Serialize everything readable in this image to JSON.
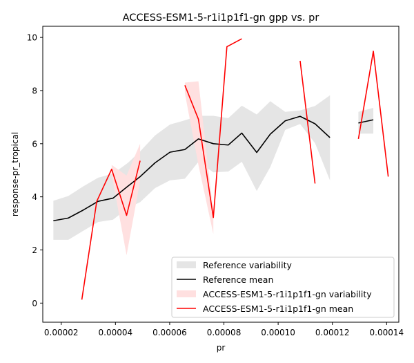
{
  "chart_data": {
    "type": "line",
    "title": "ACCESS-ESM1-5-r1i1p1f1-gn gpp vs. pr",
    "xlabel": "pr",
    "ylabel": "response-pr_tropical",
    "xlim": [
      1.32e-05,
      0.0001445
    ],
    "ylim": [
      -0.72,
      10.42
    ],
    "xticks": [
      2e-05,
      4e-05,
      6e-05,
      8e-05,
      0.0001,
      0.00012,
      0.00014
    ],
    "xtick_labels": [
      "0.00002",
      "0.00004",
      "0.00006",
      "0.00008",
      "0.00010",
      "0.00012",
      "0.00014"
    ],
    "yticks": [
      0,
      2,
      4,
      6,
      8,
      10
    ],
    "ytick_labels": [
      "0",
      "2",
      "4",
      "6",
      "8",
      "10"
    ],
    "legend_position": "lower-right",
    "series": [
      {
        "name": "Reference variability",
        "kind": "band",
        "color": "#e5e5e5",
        "segments": [
          {
            "x": [
              1.71e-05,
              2.26e-05,
              2.81e-05,
              3.36e-05,
              3.91e-05,
              4.46e-05,
              4.91e-05,
              5.46e-05,
              6.01e-05,
              6.56e-05,
              7.06e-05,
              7.61e-05,
              8.16e-05,
              8.66e-05,
              9.21e-05,
              9.71e-05,
              0.0001026,
              0.0001081,
              0.0001136,
              0.0001191
            ],
            "lower": [
              2.38,
              2.38,
              2.72,
              3.05,
              3.14,
              3.58,
              3.8,
              4.33,
              4.62,
              4.68,
              5.32,
              4.92,
              4.95,
              5.32,
              4.22,
              5.12,
              6.52,
              6.74,
              6.02,
              4.62
            ],
            "upper": [
              3.85,
              4.03,
              4.39,
              4.72,
              4.87,
              5.28,
              5.71,
              6.31,
              6.72,
              6.88,
              7.05,
              7.05,
              6.96,
              7.43,
              7.1,
              7.6,
              7.2,
              7.25,
              7.42,
              7.82
            ]
          },
          {
            "x": [
              0.0001296,
              0.0001351
            ],
            "lower": [
              6.38,
              6.38
            ],
            "upper": [
              7.2,
              7.35
            ]
          }
        ]
      },
      {
        "name": "Reference mean",
        "kind": "line",
        "color": "#000000",
        "segments": [
          {
            "x": [
              1.71e-05,
              2.26e-05,
              2.81e-05,
              3.36e-05,
              3.91e-05,
              4.46e-05,
              4.91e-05,
              5.46e-05,
              6.01e-05,
              6.56e-05,
              7.06e-05,
              7.61e-05,
              8.16e-05,
              8.66e-05,
              9.21e-05,
              9.71e-05,
              0.0001026,
              0.0001081,
              0.0001136,
              0.0001191
            ],
            "y": [
              3.1,
              3.2,
              3.5,
              3.83,
              3.95,
              4.4,
              4.76,
              5.28,
              5.68,
              5.78,
              6.18,
              6.0,
              5.95,
              6.4,
              5.67,
              6.36,
              6.86,
              7.03,
              6.75,
              6.23
            ]
          },
          {
            "x": [
              0.0001296,
              0.0001351
            ],
            "y": [
              6.78,
              6.9
            ]
          }
        ]
      },
      {
        "name": "ACCESS-ESM1-5-r1i1p1f1-gn variability",
        "kind": "band",
        "color": "#ffe0e0",
        "segments": [
          {
            "x": [
              3.86e-05,
              4.41e-05,
              4.91e-05
            ],
            "lower": [
              4.85,
              1.8,
              4.6
            ],
            "upper": [
              5.2,
              4.8,
              6.0
            ]
          },
          {
            "x": [
              6.56e-05,
              7.06e-05,
              7.61e-05
            ],
            "lower": [
              7.9,
              5.2,
              2.6
            ],
            "upper": [
              8.3,
              8.35,
              3.4
            ]
          }
        ]
      },
      {
        "name": "ACCESS-ESM1-5-r1i1p1f1-gn mean",
        "kind": "line",
        "color": "#ff0000",
        "segments": [
          {
            "x": [
              2.76e-05,
              3.31e-05,
              3.86e-05,
              4.41e-05,
              4.91e-05
            ],
            "y": [
              0.13,
              3.83,
              5.04,
              3.3,
              5.36
            ]
          },
          {
            "x": [
              6.56e-05,
              7.06e-05,
              7.61e-05,
              8.11e-05,
              8.66e-05
            ],
            "y": [
              8.2,
              6.92,
              3.22,
              9.65,
              9.95
            ]
          },
          {
            "x": [
              0.0001081,
              0.0001136
            ],
            "y": [
              9.12,
              4.5
            ]
          },
          {
            "x": [
              0.0001296,
              0.0001351,
              0.0001406
            ],
            "y": [
              6.18,
              9.48,
              4.76
            ]
          }
        ]
      }
    ]
  }
}
